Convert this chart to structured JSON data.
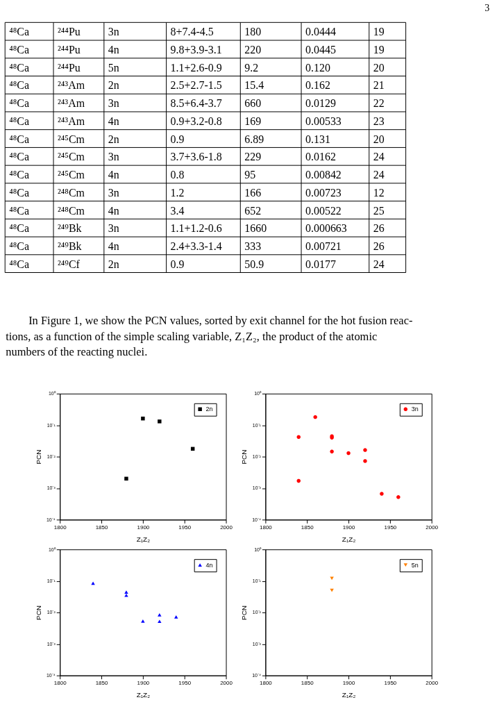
{
  "chart_data": [
    {
      "type": "other",
      "annotations": [
        "3"
      ],
      "cell_labels": [
        [
          "⁴⁸Ca",
          "²⁴⁴Pu",
          "3n",
          "8+7.4-4.5",
          "180",
          "0.0444",
          "19"
        ],
        [
          "⁴⁸Ca",
          "²⁴⁴Pu",
          "4n",
          "9.8+3.9-3.1",
          "220",
          "0.0445",
          "19"
        ],
        [
          "⁴⁸Ca",
          "²⁴⁴Pu",
          "5n",
          "1.1+2.6-0.9",
          "9.2",
          "0.120",
          "20"
        ],
        [
          "⁴⁸Ca",
          "²⁴³Am",
          "2n",
          "2.5+2.7-1.5",
          "15.4",
          "0.162",
          "21"
        ],
        [
          "⁴⁸Ca",
          "²⁴³Am",
          "3n",
          "8.5+6.4-3.7",
          "660",
          "0.0129",
          "22"
        ],
        [
          "⁴⁸Ca",
          "²⁴³Am",
          "4n",
          "0.9+3.2-0.8",
          "169",
          "0.00533",
          "23"
        ],
        [
          "⁴⁸Ca",
          "²⁴⁵Cm",
          "2n",
          "0.9",
          "6.89",
          "0.131",
          "20"
        ],
        [
          "⁴⁸Ca",
          "²⁴⁵Cm",
          "3n",
          "3.7+3.6-1.8",
          "229",
          "0.0162",
          "24"
        ],
        [
          "⁴⁸Ca",
          "²⁴⁵Cm",
          "4n",
          "0.8",
          "95",
          "0.00842",
          "24"
        ],
        [
          "⁴⁸Ca",
          "²⁴⁸Cm",
          "3n",
          "1.2",
          "166",
          "0.00723",
          "12"
        ],
        [
          "⁴⁸Ca",
          "²⁴⁸Cm",
          "4n",
          "3.4",
          "652",
          "0.00522",
          "25"
        ],
        [
          "⁴⁸Ca",
          "²⁴⁹Bk",
          "3n",
          "1.1+1.2-0.6",
          "1660",
          "0.000663",
          "26"
        ],
        [
          "⁴⁸Ca",
          "²⁴⁹Bk",
          "4n",
          "2.4+3.3-1.4",
          "333",
          "0.00721",
          "26"
        ],
        [
          "⁴⁸Ca",
          "²⁴⁹Cf",
          "2n",
          "0.9",
          "50.9",
          "0.0177",
          "24"
        ]
      ]
    },
    {
      "type": "other",
      "annotations": [
        "In Figure 1, we show the PCN values, sorted by exit channel for the hot fusion reac-",
        "tions, as a function of the simple scaling variable, Z₁Z₂, the product of the atomic",
        "numbers of the reacting nuclei."
      ]
    },
    {
      "type": "scatter",
      "xlabel": "Z₁Z₂",
      "ylabel": "PCN",
      "log": "y",
      "grid": false,
      "legend": "top right",
      "xlim": [
        1800,
        2000
      ],
      "xticks": [
        1800,
        1850,
        1900,
        1950,
        2000
      ],
      "ylim": [
        0.0001,
        1
      ],
      "yticks": [
        {
          "value": 0.0001,
          "label": "10⁻⁴"
        },
        {
          "value": 0.001,
          "label": "10⁻³"
        },
        {
          "value": 0.01,
          "label": "10⁻²"
        },
        {
          "value": 0.1,
          "label": "10⁻¹"
        },
        {
          "value": 1,
          "label": "10⁰"
        }
      ],
      "series": [
        {
          "name": "2n",
          "color": "#000000",
          "marker": "square",
          "x": [
            1880,
            1900,
            1920,
            1960
          ],
          "values": [
            0.002,
            0.162,
            0.131,
            0.0177
          ]
        }
      ]
    },
    {
      "type": "scatter",
      "xlabel": "Z₁Z₂",
      "ylabel": "PCN",
      "log": "y",
      "grid": false,
      "legend": "top right",
      "xlim": [
        1800,
        2000
      ],
      "xticks": [
        1800,
        1850,
        1900,
        1950,
        2000
      ],
      "ylim": [
        0.0001,
        1
      ],
      "yticks": [
        {
          "value": 0.0001,
          "label": "10⁻⁴"
        },
        {
          "value": 0.001,
          "label": "10⁻³"
        },
        {
          "value": 0.01,
          "label": "10⁻²"
        },
        {
          "value": 0.1,
          "label": "10⁻¹"
        },
        {
          "value": 1,
          "label": "10⁰"
        }
      ],
      "series": [
        {
          "name": "3n",
          "color": "#ff0000",
          "marker": "circle",
          "x": [
            1840,
            1840,
            1860,
            1880,
            1880,
            1880,
            1900,
            1920,
            1920,
            1940,
            1960
          ],
          "values": [
            0.042,
            0.0017,
            0.18,
            0.0444,
            0.04,
            0.0145,
            0.0129,
            0.0162,
            0.00723,
            0.000663,
            0.00052
          ]
        }
      ]
    },
    {
      "type": "scatter",
      "xlabel": "Z₁Z₂",
      "ylabel": "PCN",
      "log": "y",
      "grid": false,
      "legend": "top right",
      "xlim": [
        1800,
        2000
      ],
      "xticks": [
        1800,
        1850,
        1900,
        1950,
        2000
      ],
      "ylim": [
        0.0001,
        1
      ],
      "yticks": [
        {
          "value": 0.0001,
          "label": "10⁻⁴"
        },
        {
          "value": 0.001,
          "label": "10⁻³"
        },
        {
          "value": 0.01,
          "label": "10⁻²"
        },
        {
          "value": 0.1,
          "label": "10⁻¹"
        },
        {
          "value": 1,
          "label": "10⁰"
        }
      ],
      "series": [
        {
          "name": "4n",
          "color": "#0000ff",
          "marker": "triangle",
          "x": [
            1840,
            1880,
            1880,
            1900,
            1920,
            1920,
            1940
          ],
          "values": [
            0.085,
            0.0445,
            0.035,
            0.00533,
            0.00842,
            0.00522,
            0.00721
          ]
        }
      ]
    },
    {
      "type": "scatter",
      "xlabel": "Z₁Z₂",
      "ylabel": "PCN",
      "log": "y",
      "grid": false,
      "legend": "top right",
      "xlim": [
        1800,
        2000
      ],
      "xticks": [
        1800,
        1850,
        1900,
        1950,
        2000
      ],
      "ylim": [
        0.0001,
        1
      ],
      "yticks": [
        {
          "value": 0.0001,
          "label": "10⁻⁴"
        },
        {
          "value": 0.001,
          "label": "10⁻³"
        },
        {
          "value": 0.01,
          "label": "10⁻²"
        },
        {
          "value": 0.1,
          "label": "10⁻¹"
        },
        {
          "value": 1,
          "label": "10⁰"
        }
      ],
      "series": [
        {
          "name": "5n",
          "color": "#ff8000",
          "marker": "triangle-down",
          "x": [
            1880,
            1880
          ],
          "values": [
            0.12,
            0.05
          ]
        }
      ]
    }
  ]
}
